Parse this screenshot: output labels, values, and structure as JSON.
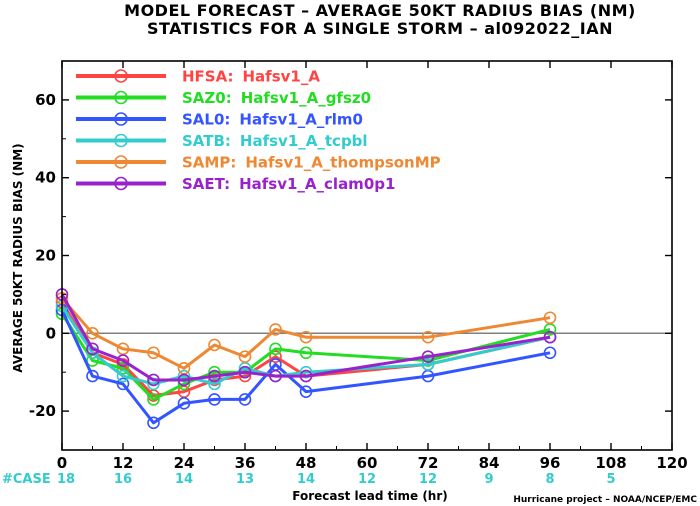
{
  "title": {
    "line1": "MODEL FORECAST – AVERAGE 50KT RADIUS BIAS (NM)",
    "line2": "STATISTICS FOR A SINGLE STORM – al092022_IAN"
  },
  "credit": "Hurricane project – NOAA/NCEP/EMC",
  "colors": {
    "zero_line": "#808080",
    "axis": "#000000",
    "case_text": "#33cccc"
  },
  "chart_data": {
    "type": "line",
    "xlabel": "Forecast lead time (hr)",
    "ylabel": "AVERAGE 50KT RADIUS BIAS (NM)",
    "xlim": [
      0,
      120
    ],
    "ylim": [
      -30,
      70
    ],
    "xticks": [
      0,
      12,
      24,
      36,
      48,
      60,
      72,
      84,
      96,
      108,
      120
    ],
    "yticks": [
      -20,
      0,
      20,
      40,
      60
    ],
    "ytick_labels": [
      "-20",
      "0",
      "20",
      "40",
      "60"
    ],
    "zero_line": true,
    "grid": false,
    "legend_position": "top-left",
    "case_prefix": "#CASE",
    "cases": [
      {
        "x": 0,
        "label": "18"
      },
      {
        "x": 12,
        "label": "16"
      },
      {
        "x": 24,
        "label": "14"
      },
      {
        "x": 36,
        "label": "13"
      },
      {
        "x": 48,
        "label": "14"
      },
      {
        "x": 60,
        "label": "12"
      },
      {
        "x": 72,
        "label": "12"
      },
      {
        "x": 84,
        "label": "9"
      },
      {
        "x": 96,
        "label": "8"
      },
      {
        "x": 108,
        "label": "5"
      }
    ],
    "series": [
      {
        "legend_code": "HFSA:",
        "legend_name": "Hafsv1_A",
        "color": "#ff4444",
        "x": [
          0,
          6,
          12,
          18,
          24,
          30,
          36,
          42,
          48,
          72,
          96
        ],
        "y": [
          8,
          -5,
          -8,
          -16,
          -15,
          -12,
          -11,
          -6,
          -11,
          -8,
          -1
        ]
      },
      {
        "legend_code": "SAZ0:",
        "legend_name": "Hafsv1_A_gfsz0",
        "color": "#22dd22",
        "x": [
          0,
          6,
          12,
          18,
          24,
          30,
          36,
          42,
          48,
          72,
          96
        ],
        "y": [
          5,
          -7,
          -9,
          -17,
          -13,
          -10,
          -10,
          -4,
          -5,
          -7,
          1
        ]
      },
      {
        "legend_code": "SAL0:",
        "legend_name": "Hafsv1_A_rlm0",
        "color": "#3355ff",
        "x": [
          0,
          6,
          12,
          18,
          24,
          30,
          36,
          42,
          48,
          72,
          96
        ],
        "y": [
          6,
          -11,
          -13,
          -23,
          -18,
          -17,
          -17,
          -8,
          -15,
          -11,
          -5
        ]
      },
      {
        "legend_code": "SATB:",
        "legend_name": "Hafsv1_A_tcpbl",
        "color": "#33cccc",
        "x": [
          0,
          6,
          12,
          18,
          24,
          30,
          36,
          42,
          48,
          72,
          96
        ],
        "y": [
          7,
          -5,
          -11,
          -13,
          -11,
          -13,
          -9,
          -11,
          -10,
          -8,
          -1
        ]
      },
      {
        "legend_code": "SAMP:",
        "legend_name": "Hafsv1_A_thompsonMP",
        "color": "#ee8833",
        "x": [
          0,
          6,
          12,
          18,
          24,
          30,
          36,
          42,
          48,
          72,
          96
        ],
        "y": [
          9,
          0,
          -4,
          -5,
          -9,
          -3,
          -6,
          1,
          -1,
          -1,
          4
        ]
      },
      {
        "legend_code": "SAET:",
        "legend_name": "Hafsv1_A_clam0p1",
        "color": "#9922cc",
        "x": [
          0,
          6,
          12,
          18,
          24,
          30,
          36,
          42,
          48,
          72,
          96
        ],
        "y": [
          10,
          -4,
          -7,
          -12,
          -12,
          -11,
          -10,
          -11,
          -11,
          -6,
          -1
        ]
      }
    ]
  }
}
